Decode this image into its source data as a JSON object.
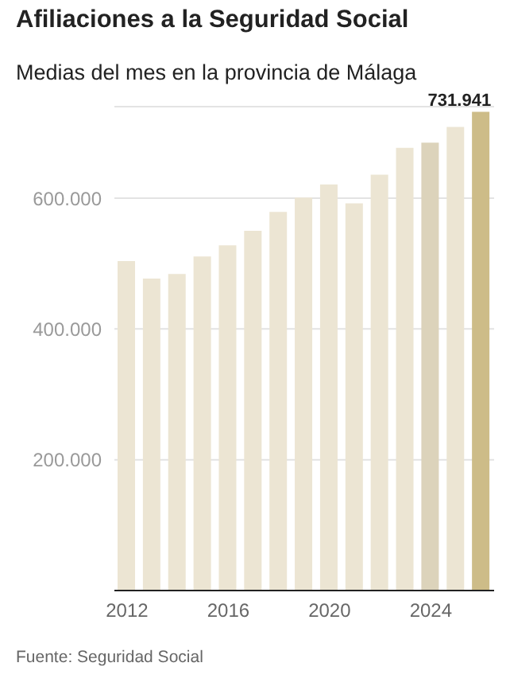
{
  "chart_data": {
    "type": "bar",
    "title": "Afiliaciones a la Seguridad Social",
    "subtitle": "Medias del mes en la provincia de Málaga",
    "x": [
      2012,
      2013,
      2014,
      2015,
      2016,
      2017,
      2018,
      2019,
      2020,
      2021,
      2022,
      2023,
      2024,
      2025,
      2026
    ],
    "values": [
      504000,
      477000,
      484000,
      511000,
      528000,
      550000,
      579000,
      601000,
      621000,
      592000,
      636000,
      677000,
      685000,
      709000,
      731941
    ],
    "colors": [
      "#ece5d3",
      "#ece5d3",
      "#ece5d3",
      "#ece5d3",
      "#ece5d3",
      "#ece5d3",
      "#ece5d3",
      "#ece5d3",
      "#ece5d3",
      "#ece5d3",
      "#ece5d3",
      "#ece5d3",
      "#dcd3bb",
      "#ece5d3",
      "#cdbc88"
    ],
    "value_labels": [
      null,
      null,
      null,
      null,
      null,
      null,
      null,
      null,
      null,
      null,
      null,
      null,
      null,
      null,
      "731.941"
    ],
    "xlim": [
      2011.5,
      2026.5
    ],
    "xticks": [
      2012,
      2016,
      2020,
      2024
    ],
    "ylim": [
      0,
      740000
    ],
    "yticks": [
      {
        "value": 200000,
        "label": "200.000"
      },
      {
        "value": 400000,
        "label": "400.000"
      },
      {
        "value": 600000,
        "label": "600.000"
      }
    ],
    "grid": "y",
    "legend": false,
    "annotations": [
      "Fuente: Seguridad Social"
    ]
  }
}
